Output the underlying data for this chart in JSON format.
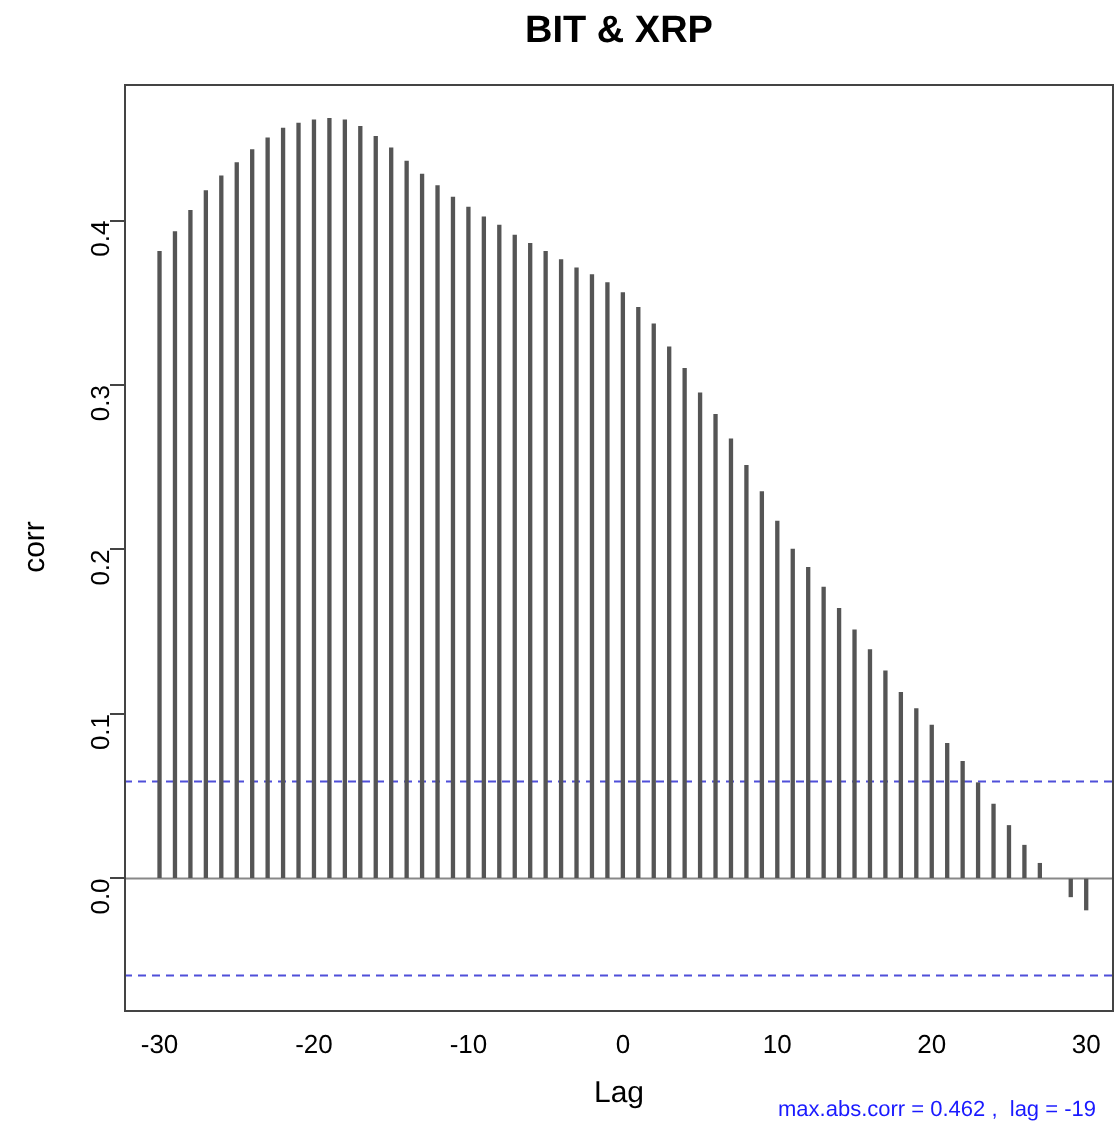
{
  "chart_data": {
    "type": "bar",
    "title": "BIT & XRP",
    "xlabel": "Lag",
    "ylabel": "corr",
    "x": [
      -30,
      -29,
      -28,
      -27,
      -26,
      -25,
      -24,
      -23,
      -22,
      -21,
      -20,
      -19,
      -18,
      -17,
      -16,
      -15,
      -14,
      -13,
      -12,
      -11,
      -10,
      -9,
      -8,
      -7,
      -6,
      -5,
      -4,
      -3,
      -2,
      -1,
      0,
      1,
      2,
      3,
      4,
      5,
      6,
      7,
      8,
      9,
      10,
      11,
      12,
      13,
      14,
      15,
      16,
      17,
      18,
      19,
      20,
      21,
      22,
      23,
      24,
      25,
      26,
      27,
      28,
      29,
      30
    ],
    "values": [
      0.381,
      0.393,
      0.406,
      0.418,
      0.427,
      0.435,
      0.443,
      0.45,
      0.456,
      0.459,
      0.461,
      0.462,
      0.461,
      0.457,
      0.451,
      0.444,
      0.436,
      0.428,
      0.421,
      0.414,
      0.408,
      0.402,
      0.397,
      0.391,
      0.386,
      0.381,
      0.376,
      0.371,
      0.367,
      0.362,
      0.356,
      0.347,
      0.337,
      0.323,
      0.31,
      0.295,
      0.282,
      0.267,
      0.251,
      0.235,
      0.217,
      0.2,
      0.189,
      0.177,
      0.164,
      0.151,
      0.139,
      0.126,
      0.113,
      0.103,
      0.093,
      0.082,
      0.071,
      0.058,
      0.045,
      0.032,
      0.02,
      0.009,
      null,
      -0.011,
      -0.019
    ],
    "color": "#555555",
    "xlim": [
      -32.3,
      31.8
    ],
    "xticks": [
      -30,
      -20,
      -10,
      0,
      10,
      20,
      30
    ],
    "ylim": [
      -0.08,
      0.483
    ],
    "yticks": [
      {
        "value": 0,
        "label": "0.0"
      },
      0.1,
      0.2,
      0.3,
      0.4
    ],
    "ref_lines": [
      {
        "axis": "y",
        "value": 0,
        "color": "#888888",
        "line_style": "solid"
      },
      {
        "axis": "y",
        "value": 0.059,
        "color": "#4f4fd9",
        "line_style": "dashed"
      },
      {
        "axis": "y",
        "value": -0.059,
        "color": "#4f4fd9",
        "line_style": "dashed"
      }
    ],
    "annotations": [
      "max.abs.corr = 0.462 ,  lag = -19"
    ],
    "grid": false,
    "legend": false
  }
}
